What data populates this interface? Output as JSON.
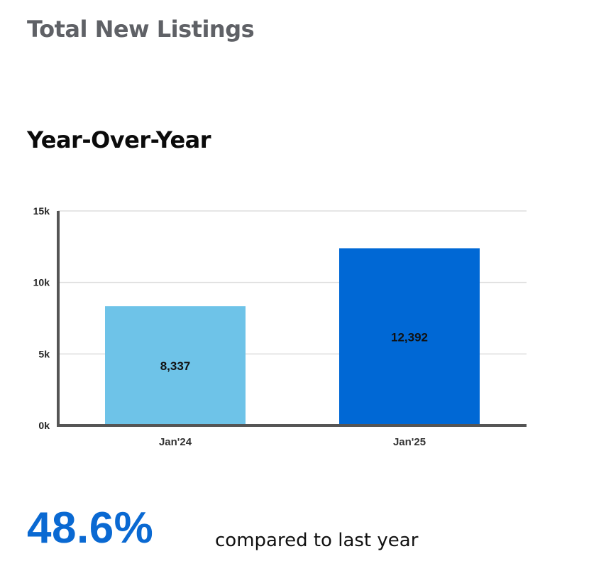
{
  "page": {
    "title": "Total New Listings",
    "section_title": "Year-Over-Year"
  },
  "chart_data": {
    "type": "bar",
    "categories": [
      "Jan'24",
      "Jan'25"
    ],
    "values": [
      8337,
      12392
    ],
    "value_labels": [
      "8,337",
      "12,392"
    ],
    "y_ticks": [
      0,
      5000,
      10000,
      15000
    ],
    "y_tick_labels": [
      "0k",
      "5k",
      "10k",
      "15k"
    ],
    "ylim": [
      0,
      15000
    ],
    "grid": true,
    "bar_colors": [
      "#6ec3e8",
      "#0068d5"
    ],
    "axis_color": "#555555",
    "grid_color": "#dddddd"
  },
  "stat": {
    "value": "48.6%",
    "caption": "compared to last year"
  }
}
